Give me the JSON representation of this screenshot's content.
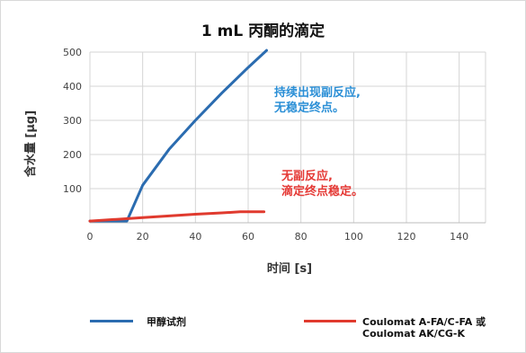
{
  "chart_data": {
    "type": "line",
    "title": "1 mL 丙酮的滴定",
    "xlabel": "时间 [s]",
    "ylabel": "含水量 [µg]",
    "xlim": [
      0,
      150
    ],
    "ylim": [
      0,
      500
    ],
    "x_ticks": [
      "0",
      "20",
      "40",
      "60",
      "80",
      "100",
      "120",
      "140"
    ],
    "y_ticks": [
      "100",
      "200",
      "300",
      "400",
      "500"
    ],
    "grid": true,
    "legend": "bottom",
    "series": [
      {
        "name": "甲醇试剂",
        "color": "#2b6cb0",
        "points": [
          [
            0,
            5
          ],
          [
            14,
            5
          ],
          [
            20,
            110
          ],
          [
            30,
            215
          ],
          [
            40,
            300
          ],
          [
            50,
            380
          ],
          [
            60,
            455
          ],
          [
            67,
            505
          ]
        ]
      },
      {
        "name": "Coulomat A-FA/C-FA 或 Coulomat AK/CG-K",
        "color": "#e03a2e",
        "points": [
          [
            0,
            5
          ],
          [
            10,
            10
          ],
          [
            20,
            15
          ],
          [
            30,
            20
          ],
          [
            40,
            25
          ],
          [
            50,
            29
          ],
          [
            57,
            32
          ],
          [
            66,
            32
          ]
        ]
      }
    ],
    "annotations": [
      {
        "lines": [
          "持续出现副反应,",
          "无稳定终点。"
        ],
        "color": "#2b8fd6"
      },
      {
        "lines": [
          "无副反应,",
          "滴定终点稳定。"
        ],
        "color": "#e53935"
      }
    ]
  },
  "legend": {
    "item1": "甲醇试剂",
    "item2_line1": "Coulomat A-FA/C-FA 或",
    "item2_line2": "Coulomat AK/CG-K"
  }
}
